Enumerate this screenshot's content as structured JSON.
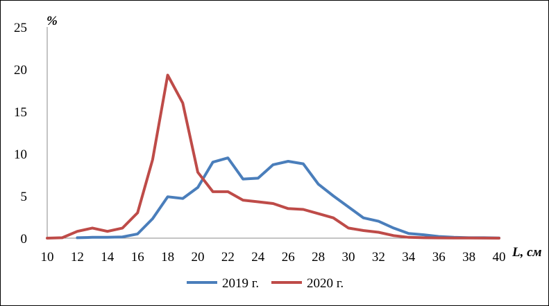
{
  "chart_data": {
    "type": "line",
    "title": "",
    "xlabel": "L, см",
    "ylabel": "%",
    "xlim": [
      10,
      40
    ],
    "ylim": [
      0,
      25
    ],
    "xticks": [
      "10",
      "12",
      "14",
      "16",
      "18",
      "20",
      "22",
      "24",
      "26",
      "28",
      "30",
      "32",
      "34",
      "36",
      "38",
      "40"
    ],
    "yticks": [
      "0",
      "5",
      "10",
      "15",
      "20",
      "25"
    ],
    "grid": false,
    "legend_position": "bottom",
    "series": [
      {
        "name": "2019 г.",
        "color": "#4a7ebb",
        "x": [
          12,
          13,
          14,
          15,
          16,
          17,
          18,
          19,
          20,
          21,
          22,
          23,
          24,
          25,
          26,
          27,
          28,
          29,
          30,
          31,
          32,
          33,
          34,
          35,
          36,
          37,
          38,
          39,
          40
        ],
        "y": [
          0.05,
          0.1,
          0.1,
          0.15,
          0.5,
          2.3,
          4.9,
          4.7,
          6.0,
          9.0,
          9.5,
          7.0,
          7.1,
          8.7,
          9.1,
          8.8,
          6.4,
          5.0,
          3.7,
          2.4,
          2.0,
          1.2,
          0.55,
          0.4,
          0.2,
          0.1,
          0.05,
          0.05,
          0.02
        ]
      },
      {
        "name": "2020 г.",
        "color": "#be4b48",
        "x": [
          10,
          11,
          12,
          13,
          14,
          15,
          16,
          17,
          18,
          19,
          20,
          21,
          22,
          23,
          24,
          25,
          26,
          27,
          28,
          29,
          30,
          31,
          32,
          33,
          34,
          35,
          36,
          37,
          38,
          39,
          40
        ],
        "y": [
          0.0,
          0.05,
          0.8,
          1.2,
          0.8,
          1.2,
          3.0,
          9.3,
          19.3,
          16.0,
          7.8,
          5.5,
          5.5,
          4.5,
          4.3,
          4.1,
          3.5,
          3.4,
          2.9,
          2.4,
          1.2,
          0.9,
          0.7,
          0.3,
          0.1,
          0.05,
          0.03,
          0.02,
          0.02,
          0.01,
          0.0
        ]
      }
    ]
  }
}
